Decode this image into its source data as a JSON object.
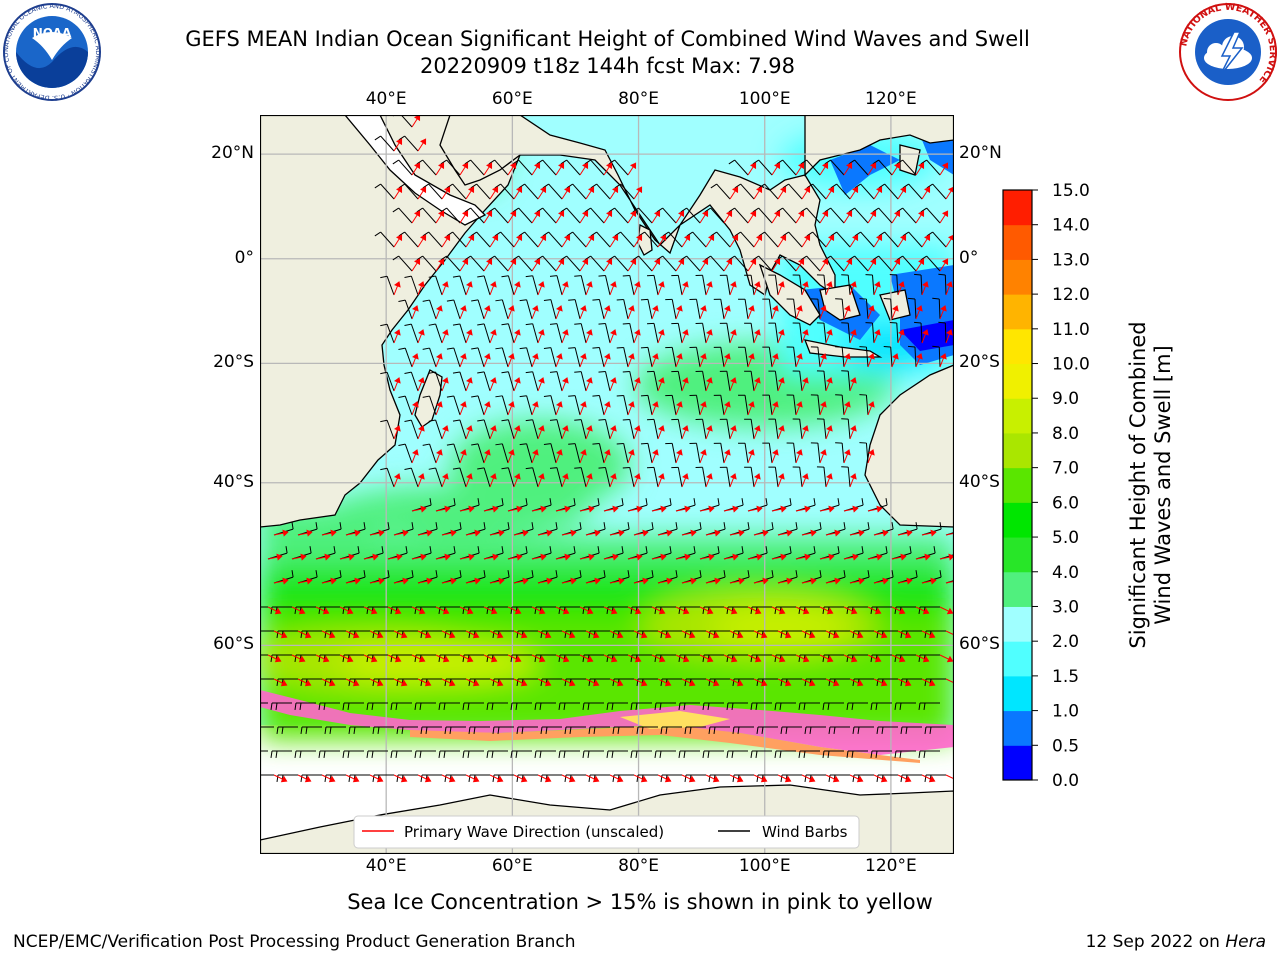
{
  "title": {
    "line1": "GEFS MEAN Indian Ocean Significant Height of Combined Wind Waves and Swell",
    "line2": "20220909 t18z 144h fcst   Max: 7.98"
  },
  "logos": {
    "left": {
      "text": "NOAA",
      "ring_text": "NATIONAL OCEANIC AND ATMOSPHERIC ADMINISTRATION · U.S. DEPARTMENT OF COMMERCE"
    },
    "right": {
      "ring_text": "NATIONAL WEATHER SERVICE"
    }
  },
  "map": {
    "lon_range": [
      20,
      130
    ],
    "lat_range": [
      -75,
      27
    ],
    "lon_ticks": [
      {
        "value": 40,
        "label": "40°E"
      },
      {
        "value": 60,
        "label": "60°E"
      },
      {
        "value": 80,
        "label": "80°E"
      },
      {
        "value": 100,
        "label": "100°E"
      },
      {
        "value": 120,
        "label": "120°E"
      }
    ],
    "lat_ticks": [
      {
        "value": 20,
        "label": "20°N"
      },
      {
        "value": 0,
        "label": "0°"
      },
      {
        "value": -20,
        "label": "20°S"
      },
      {
        "value": -40,
        "label": "40°S"
      },
      {
        "value": -60,
        "label": "60°S"
      }
    ],
    "legend": {
      "wave_label": "Primary Wave Direction (unscaled)",
      "wind_label": "Wind Barbs",
      "wave_color": "#ff0000",
      "wind_color": "#000000",
      "placement": "bottom-center"
    },
    "land_color": "#efefdf",
    "ice_colors": [
      "#ff66cc",
      "#ffa060",
      "#ffe060"
    ]
  },
  "colorbar": {
    "label_line1": "Significant Height of Combined",
    "label_line2": "Wind Waves and Swell [m]",
    "levels": [
      0.0,
      0.5,
      1.0,
      1.5,
      2.0,
      3.0,
      4.0,
      5.0,
      6.0,
      7.0,
      8.0,
      9.0,
      10.0,
      11.0,
      12.0,
      13.0,
      14.0,
      15.0
    ],
    "tick_labels": [
      "0.0",
      "0.5",
      "1.0",
      "1.5",
      "2.0",
      "3.0",
      "4.0",
      "5.0",
      "6.0",
      "7.0",
      "8.0",
      "9.0",
      "10.0",
      "11.0",
      "12.0",
      "13.0",
      "14.0",
      "15.0"
    ],
    "colors": [
      "#0000ff",
      "#0a78ff",
      "#00e6ff",
      "#50ffff",
      "#a0ffff",
      "#50f07e",
      "#28e628",
      "#00e600",
      "#5ae600",
      "#aae600",
      "#c8f000",
      "#f0f000",
      "#ffe600",
      "#ffb400",
      "#ff8200",
      "#ff5a00",
      "#ff1e00"
    ]
  },
  "footnote": "Sea Ice Concentration > 15% is shown in pink to yellow",
  "credit_left": "NCEP/EMC/Verification Post Processing Product Generation Branch",
  "credit_right_prefix": "12 Sep 2022 on ",
  "credit_right_host": "Hera"
}
